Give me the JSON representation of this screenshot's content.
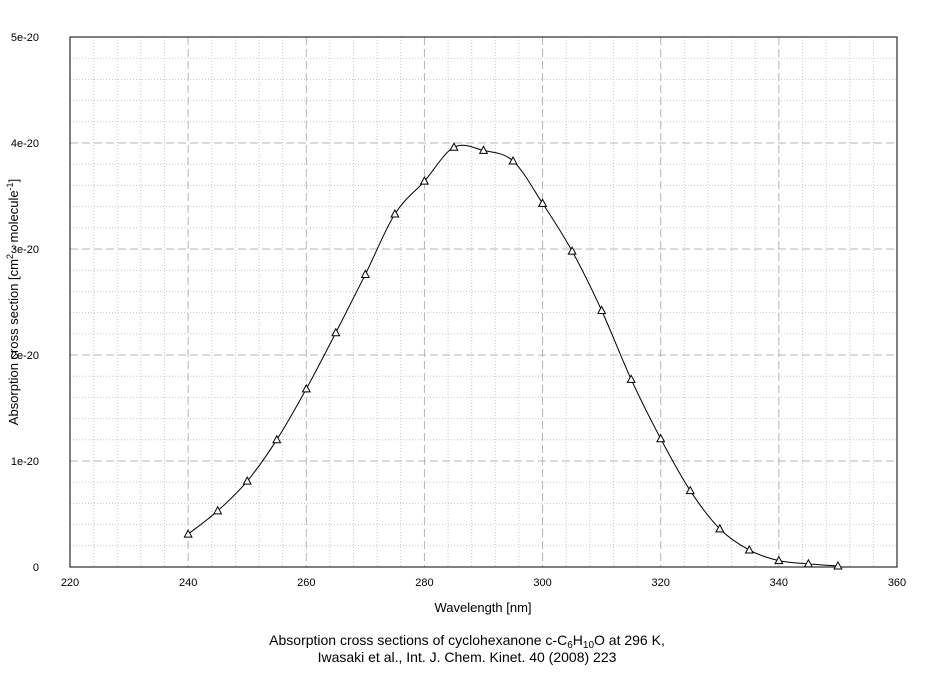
{
  "chart_data": {
    "type": "line",
    "xlabel": "Wavelength [nm]",
    "ylabel": {
      "prefix": "Absorption cross section [cm",
      "sup1": "2",
      "middle": " · molecule",
      "sup2": "-1",
      "suffix": "]"
    },
    "xlim": [
      220,
      360
    ],
    "ylim": [
      0,
      5e-20
    ],
    "x_ticks": [
      "220",
      "240",
      "260",
      "280",
      "300",
      "320",
      "340",
      "360"
    ],
    "y_ticks": [
      "0",
      "1e-20",
      "2e-20",
      "3e-20",
      "4e-20",
      "5e-20"
    ],
    "grid": true,
    "marker": "triangle",
    "series": [
      {
        "x": [
          240,
          245,
          250,
          255,
          260,
          265,
          270,
          275,
          280,
          285,
          290,
          295,
          300,
          305,
          310,
          315,
          320,
          325,
          330,
          335,
          340,
          345,
          350
        ],
        "y": [
          3.1e-21,
          5.3e-21,
          8.1e-21,
          1.2e-20,
          1.68e-20,
          2.21e-20,
          2.76e-20,
          3.33e-20,
          3.64e-20,
          3.96e-20,
          3.93e-20,
          3.83e-20,
          3.43e-20,
          2.98e-20,
          2.42e-20,
          1.77e-20,
          1.21e-20,
          7.2e-21,
          3.6e-21,
          1.6e-21,
          6e-22,
          3e-22,
          1e-22
        ]
      }
    ]
  },
  "caption": {
    "line1_prefix": "Absorption cross sections of cyclohexanone c-C",
    "sub1": "6",
    "mid": "H",
    "sub2": "10",
    "line1_suffix": "O at 296 K,",
    "line2": "Iwasaki et al., Int. J. Chem. Kinet. 40 (2008) 223"
  }
}
